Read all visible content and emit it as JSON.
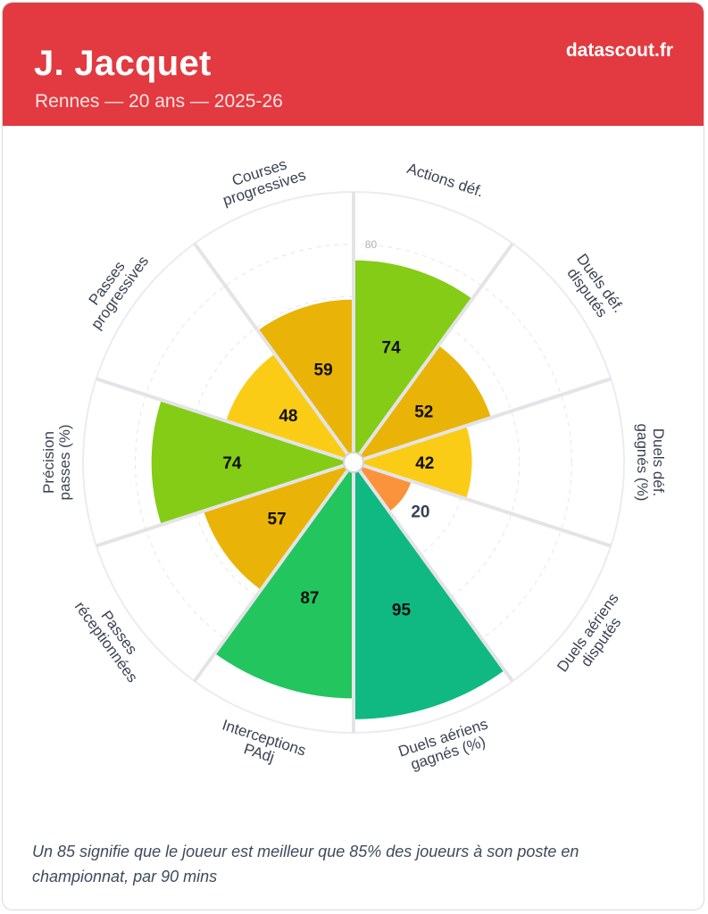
{
  "header": {
    "player_name": "J. Jacquet",
    "subtitle": "Rennes — 20 ans — 2025-26",
    "brand": "datascout.fr"
  },
  "footer": {
    "note": "Un 85 signifie que le joueur est meilleur que 85% des joueurs à son poste en championnat, par 90 mins"
  },
  "chart_data": {
    "type": "polar-bar",
    "scale": {
      "min": 0,
      "max": 100,
      "rings": [
        20,
        40,
        60,
        80,
        100
      ],
      "ring_label_shown": "80"
    },
    "categories": [
      {
        "label": [
          "Actions déf."
        ],
        "value": 74,
        "color": "#84cc16"
      },
      {
        "label": [
          "Duels déf.",
          "disputés"
        ],
        "value": 52,
        "color": "#eab308"
      },
      {
        "label": [
          "Duels déf.",
          "gagnés (%)"
        ],
        "value": 42,
        "color": "#facc15"
      },
      {
        "label": [
          "Duels aériens",
          "disputés"
        ],
        "value": 20,
        "color": "#fb923c"
      },
      {
        "label": [
          "Duels aériens",
          "gagnés (%)"
        ],
        "value": 95,
        "color": "#10b981"
      },
      {
        "label": [
          "Interceptions",
          "PAdj"
        ],
        "value": 87,
        "color": "#22c55e"
      },
      {
        "label": [
          "Passes",
          "réceptionnées"
        ],
        "value": 57,
        "color": "#eab308"
      },
      {
        "label": [
          "Précision",
          "passes (%)"
        ],
        "value": 74,
        "color": "#84cc16"
      },
      {
        "label": [
          "Passes",
          "progressives"
        ],
        "value": 48,
        "color": "#facc15"
      },
      {
        "label": [
          "Courses",
          "progressives"
        ],
        "value": 59,
        "color": "#eab308"
      }
    ]
  }
}
